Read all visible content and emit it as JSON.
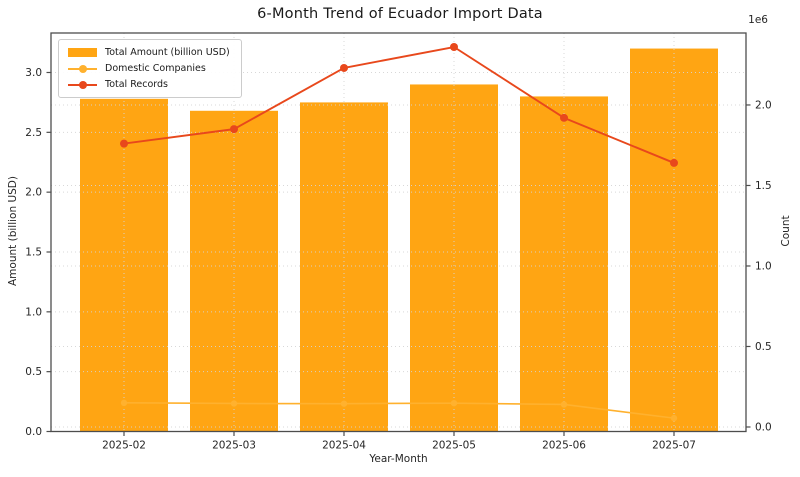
{
  "colors": {
    "bar": "#FFA513",
    "domestic_line": "#FFB12E",
    "records_line": "#E8481C",
    "grid": "#d4d4d4",
    "spine": "#4d4d4d",
    "tick_text": "#262626"
  },
  "chart_data": {
    "type": "bar",
    "title": "6-Month Trend of Ecuador Import Data",
    "xlabel": "Year-Month",
    "ylabel_left": "Amount (billion USD)",
    "ylabel_right": "Count",
    "right_axis_multiplier": "1e6",
    "grid": "dotted, both axes, vertical at each category",
    "legend_position": "upper left",
    "categories": [
      "2025-02",
      "2025-03",
      "2025-04",
      "2025-05",
      "2025-06",
      "2025-07"
    ],
    "series": [
      {
        "name": "Total Amount (billion USD)",
        "kind": "bar",
        "axis": "left",
        "color": "#FFA513",
        "values": [
          2.78,
          2.68,
          2.75,
          2.9,
          2.8,
          3.2
        ]
      },
      {
        "name": "Domestic Companies",
        "kind": "line",
        "axis": "right",
        "color": "#FFB12E",
        "values": [
          150000,
          146000,
          145000,
          148000,
          140000,
          55000
        ]
      },
      {
        "name": "Total Records",
        "kind": "line",
        "axis": "right",
        "color": "#E8481C",
        "values": [
          1760000,
          1850000,
          2230000,
          2360000,
          1920000,
          1640000
        ]
      }
    ],
    "left_ticks": {
      "labels": [
        "0.0",
        "0.5",
        "1.0",
        "1.5",
        "2.0",
        "2.5",
        "3.0"
      ],
      "values": [
        0,
        0.5,
        1.0,
        1.5,
        2.0,
        2.5,
        3.0
      ]
    },
    "right_ticks": {
      "labels": [
        "0.0",
        "0.5",
        "1.0",
        "1.5",
        "2.0"
      ],
      "values": [
        0,
        500000,
        1000000,
        1500000,
        2000000
      ]
    },
    "left_ylim": [
      0,
      3.33
    ],
    "right_ylim": [
      -28000,
      2447000
    ]
  }
}
